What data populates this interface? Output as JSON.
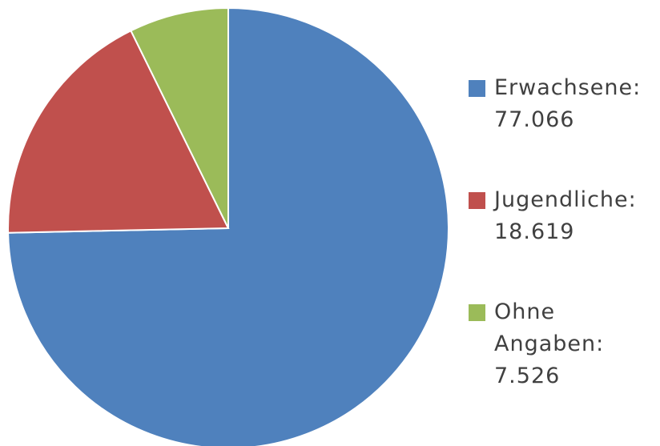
{
  "chart_data": {
    "type": "pie",
    "categories": [
      "Erwachsene:",
      "Jugendliche:",
      "Ohne Angaben:"
    ],
    "values": [
      77066,
      18619,
      7526
    ],
    "value_labels": [
      "77.066",
      "18.619",
      "7.526"
    ],
    "colors": [
      "#4f81bd",
      "#c0504d",
      "#9bbb59"
    ],
    "legend": "right"
  }
}
